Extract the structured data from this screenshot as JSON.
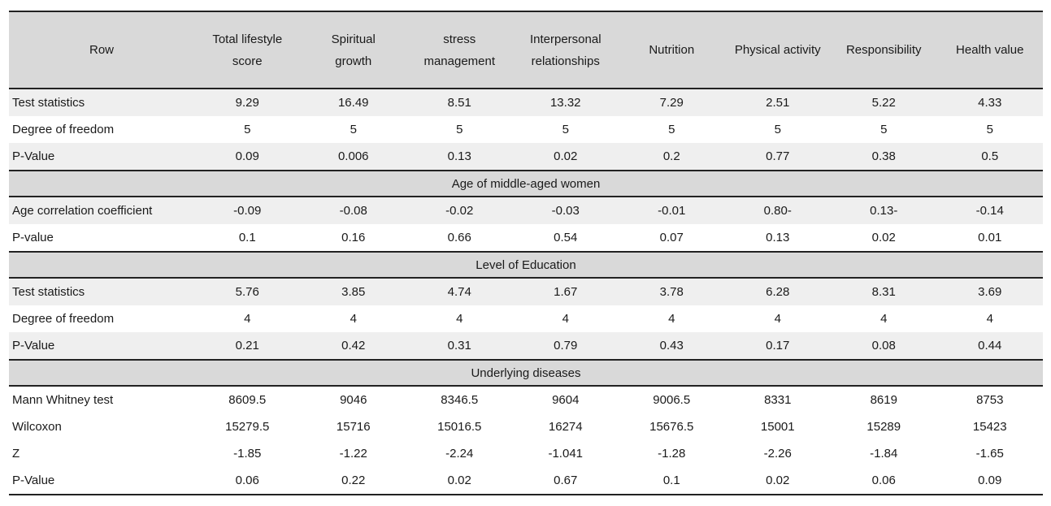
{
  "headers": [
    "Row",
    "Total lifestyle\nscore",
    "Spiritual\ngrowth",
    "stress\nmanagement",
    "Interpersonal\nrelationships",
    "Nutrition",
    "Physical activity",
    "Responsibility",
    "Health value"
  ],
  "block1": [
    {
      "label": "Test statistics",
      "values": [
        "9.29",
        "16.49",
        "8.51",
        "13.32",
        "7.29",
        "2.51",
        "5.22",
        "4.33"
      ]
    },
    {
      "label": "Degree of freedom",
      "values": [
        "5",
        "5",
        "5",
        "5",
        "5",
        "5",
        "5",
        "5"
      ]
    },
    {
      "label": "P-Value",
      "values": [
        "0.09",
        "0.006",
        "0.13",
        "0.02",
        "0.2",
        "0.77",
        "0.38",
        "0.5"
      ]
    }
  ],
  "section_age": "Age  of middle-aged women",
  "block2": [
    {
      "label": "Age correlation coefficient",
      "values": [
        "-0.09",
        "-0.08",
        "-0.02",
        "-0.03",
        "-0.01",
        "0.80-",
        "0.13-",
        "-0.14"
      ]
    },
    {
      "label": "P-value",
      "values": [
        "0.1",
        "0.16",
        "0.66",
        "0.54",
        "0.07",
        "0.13",
        "0.02",
        "0.01"
      ]
    }
  ],
  "section_edu": "Level of Education",
  "block3": [
    {
      "label": "Test statistics",
      "values": [
        "5.76",
        "3.85",
        "4.74",
        "1.67",
        "3.78",
        "6.28",
        "8.31",
        "3.69"
      ]
    },
    {
      "label": "Degree of freedom",
      "values": [
        "4",
        "4",
        "4",
        "4",
        "4",
        "4",
        "4",
        "4"
      ]
    },
    {
      "label": "P-Value",
      "values": [
        "0.21",
        "0.42",
        "0.31",
        "0.79",
        "0.43",
        "0.17",
        "0.08",
        "0.44"
      ]
    }
  ],
  "section_dis": "Underlying diseases",
  "block4": [
    {
      "label": "Mann Whitney test",
      "values": [
        "8609.5",
        "9046",
        "8346.5",
        "9604",
        "9006.5",
        "8331",
        "8619",
        "8753"
      ]
    },
    {
      "label": "Wilcoxon",
      "values": [
        "15279.5",
        "15716",
        "15016.5",
        "16274",
        "15676.5",
        "15001",
        "15289",
        "15423"
      ]
    },
    {
      "label": "Z",
      "values": [
        "-1.85",
        "-1.22",
        "-2.24",
        "-1.041",
        "-1.28",
        "-2.26",
        "-1.84",
        "-1.65"
      ]
    },
    {
      "label": "P-Value",
      "values": [
        "0.06",
        "0.22",
        "0.02",
        "0.67",
        "0.1",
        "0.02",
        "0.06",
        "0.09"
      ]
    }
  ]
}
